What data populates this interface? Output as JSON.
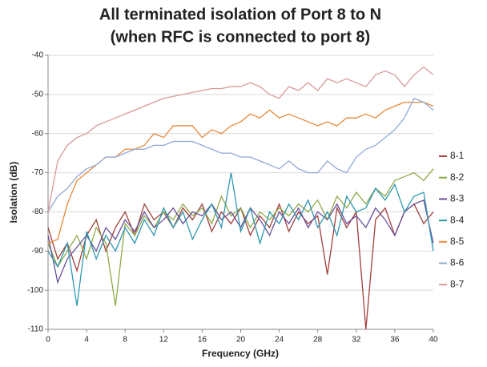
{
  "chart_data": {
    "type": "line",
    "title": [
      "All terminated isolation of Port 8 to N",
      "(when RFC is connected to port 8)"
    ],
    "x_label": "Frequency (GHz)",
    "y_label": "Isolation (dB)",
    "x": [
      0,
      1,
      2,
      3,
      4,
      5,
      6,
      7,
      8,
      9,
      10,
      11,
      12,
      13,
      14,
      15,
      16,
      17,
      18,
      19,
      20,
      21,
      22,
      23,
      24,
      25,
      26,
      27,
      28,
      29,
      30,
      31,
      32,
      33,
      34,
      35,
      36,
      37,
      38,
      39,
      40
    ],
    "xlim": [
      0,
      40
    ],
    "xticks": [
      0,
      4,
      8,
      12,
      16,
      20,
      24,
      28,
      32,
      36,
      40
    ],
    "ylim": [
      -110,
      -40
    ],
    "yticks": [
      -110,
      -100,
      -90,
      -80,
      -70,
      -60,
      -50,
      -40
    ],
    "grid": true,
    "legend": "right",
    "series": [
      {
        "name": "8-1",
        "color": "#a0403c",
        "values": [
          -84,
          -92,
          -88,
          -95,
          -86,
          -82,
          -90,
          -84,
          -80,
          -86,
          -78,
          -82,
          -80,
          -84,
          -79,
          -82,
          -78,
          -85,
          -80,
          -83,
          -79,
          -86,
          -81,
          -84,
          -78,
          -85,
          -80,
          -83,
          -81,
          -96,
          -79,
          -84,
          -80,
          -110,
          -82,
          -79,
          -86,
          -80,
          -78,
          -83,
          -80
        ]
      },
      {
        "name": "8-2",
        "color": "#8faa4a",
        "values": [
          -88,
          -94,
          -90,
          -86,
          -92,
          -84,
          -88,
          -104,
          -83,
          -86,
          -81,
          -84,
          -80,
          -82,
          -78,
          -81,
          -79,
          -83,
          -76,
          -81,
          -79,
          -84,
          -80,
          -82,
          -79,
          -81,
          -78,
          -80,
          -77,
          -82,
          -76,
          -79,
          -75,
          -78,
          -74,
          -76,
          -72,
          -71,
          -70,
          -72,
          -69
        ]
      },
      {
        "name": "8-3",
        "color": "#6a4f9a",
        "values": [
          -86,
          -98,
          -92,
          -89,
          -86,
          -90,
          -84,
          -87,
          -82,
          -85,
          -80,
          -84,
          -82,
          -79,
          -83,
          -80,
          -81,
          -78,
          -82,
          -80,
          -84,
          -79,
          -82,
          -86,
          -80,
          -83,
          -79,
          -84,
          -80,
          -82,
          -78,
          -83,
          -81,
          -84,
          -79,
          -82,
          -86,
          -80,
          -78,
          -77,
          -88
        ]
      },
      {
        "name": "8-4",
        "color": "#2e98ae",
        "values": [
          -90,
          -94,
          -88,
          -104,
          -85,
          -92,
          -86,
          -90,
          -84,
          -88,
          -82,
          -86,
          -79,
          -84,
          -80,
          -87,
          -82,
          -78,
          -84,
          -70,
          -85,
          -79,
          -88,
          -80,
          -83,
          -78,
          -82,
          -77,
          -84,
          -80,
          -86,
          -76,
          -80,
          -79,
          -74,
          -77,
          -73,
          -80,
          -76,
          -75,
          -90
        ]
      },
      {
        "name": "8-5",
        "color": "#e8893a",
        "values": [
          -88,
          -87,
          -78,
          -72,
          -70,
          -68,
          -66,
          -66,
          -64,
          -64,
          -63,
          -60,
          -61,
          -58,
          -58,
          -58,
          -61,
          -59,
          -60,
          -58,
          -57,
          -55,
          -56,
          -54,
          -56,
          -55,
          -56,
          -57,
          -58,
          -57,
          -58,
          -56,
          -56,
          -55,
          -56,
          -54,
          -53,
          -52,
          -52,
          -52,
          -53
        ]
      },
      {
        "name": "8-6",
        "color": "#8fa9d6",
        "values": [
          -80,
          -76,
          -74,
          -71,
          -69,
          -68,
          -66,
          -66,
          -65,
          -64,
          -64,
          -63,
          -63,
          -62,
          -62,
          -62,
          -63,
          -64,
          -65,
          -65,
          -66,
          -66,
          -67,
          -68,
          -69,
          -67,
          -69,
          -70,
          -70,
          -67,
          -69,
          -70,
          -66,
          -64,
          -63,
          -61,
          -59,
          -56,
          -51,
          -52,
          -54
        ]
      },
      {
        "name": "8-7",
        "color": "#d89a9a",
        "values": [
          -80,
          -67,
          -63,
          -61,
          -60,
          -58,
          -57,
          -56,
          -55,
          -54,
          -53,
          -52,
          -51,
          -50.5,
          -50,
          -49.5,
          -49,
          -48.5,
          -48.5,
          -48,
          -48,
          -47,
          -48,
          -50,
          -51,
          -48,
          -49,
          -47,
          -49,
          -46,
          -47,
          -46,
          -47,
          -48,
          -45,
          -44,
          -45,
          -48,
          -45,
          -43,
          -45
        ]
      }
    ]
  }
}
